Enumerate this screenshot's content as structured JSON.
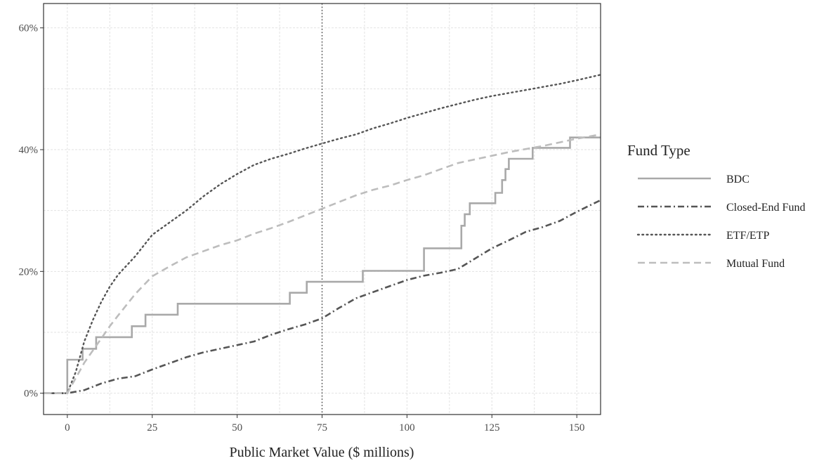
{
  "chart_data": {
    "type": "line",
    "step": true,
    "title": "",
    "xlabel": "Public Market Value ($ millions)",
    "ylabel": "",
    "xlim": [
      -7,
      157
    ],
    "ylim": [
      -3.5,
      64
    ],
    "x_ticks": [
      0,
      25,
      50,
      75,
      100,
      125,
      150
    ],
    "x_tick_labels": [
      "0",
      "25",
      "50",
      "75",
      "100",
      "125",
      "150"
    ],
    "y_ticks": [
      0,
      20,
      40,
      60
    ],
    "y_tick_labels": [
      "0%",
      "20%",
      "40%",
      "60%"
    ],
    "grid": true,
    "reference_line": {
      "axis": "x",
      "value": 75,
      "style": "dotted"
    },
    "legend": {
      "title": "Fund Type",
      "placement": "right",
      "entries": [
        "BDC",
        "Closed-End Fund",
        "ETF/ETP",
        "Mutual Fund"
      ]
    },
    "series": [
      {
        "name": "BDC",
        "color": "#a9a9a9",
        "dash": "solid",
        "points": [
          [
            -7,
            0
          ],
          [
            0,
            0
          ],
          [
            0,
            5.5
          ],
          [
            4.5,
            5.5
          ],
          [
            4.5,
            7.3
          ],
          [
            8.5,
            7.3
          ],
          [
            8.5,
            9.2
          ],
          [
            19,
            9.2
          ],
          [
            19,
            11
          ],
          [
            23,
            11
          ],
          [
            23,
            12.9
          ],
          [
            32.5,
            12.9
          ],
          [
            32.5,
            14.7
          ],
          [
            65.5,
            14.7
          ],
          [
            65.5,
            16.5
          ],
          [
            70.5,
            16.5
          ],
          [
            70.5,
            18.3
          ],
          [
            87,
            18.3
          ],
          [
            87,
            20.1
          ],
          [
            105,
            20.1
          ],
          [
            105,
            23.8
          ],
          [
            116,
            23.8
          ],
          [
            116,
            27.5
          ],
          [
            117,
            27.5
          ],
          [
            117,
            29.4
          ],
          [
            118.5,
            29.4
          ],
          [
            118.5,
            31.2
          ],
          [
            126,
            31.2
          ],
          [
            126,
            32.9
          ],
          [
            128,
            32.9
          ],
          [
            128,
            35
          ],
          [
            129,
            35
          ],
          [
            129,
            36.8
          ],
          [
            130,
            36.8
          ],
          [
            130,
            38.5
          ],
          [
            137,
            38.5
          ],
          [
            137,
            40.3
          ],
          [
            148,
            40.3
          ],
          [
            148,
            42
          ],
          [
            157,
            42
          ]
        ]
      },
      {
        "name": "Closed-End Fund",
        "color": "#555555",
        "dash": "dotdash",
        "points": [
          [
            -7,
            0
          ],
          [
            0,
            0
          ],
          [
            5,
            0.5
          ],
          [
            10,
            1.6
          ],
          [
            15,
            2.4
          ],
          [
            20,
            2.8
          ],
          [
            25,
            3.9
          ],
          [
            30,
            4.9
          ],
          [
            35,
            5.9
          ],
          [
            40,
            6.7
          ],
          [
            45,
            7.3
          ],
          [
            50,
            7.9
          ],
          [
            55,
            8.5
          ],
          [
            60,
            9.6
          ],
          [
            65,
            10.5
          ],
          [
            70,
            11.3
          ],
          [
            75,
            12.3
          ],
          [
            80,
            14
          ],
          [
            85,
            15.6
          ],
          [
            90,
            16.6
          ],
          [
            95,
            17.6
          ],
          [
            100,
            18.6
          ],
          [
            105,
            19.3
          ],
          [
            110,
            19.8
          ],
          [
            115,
            20.4
          ],
          [
            120,
            22.1
          ],
          [
            125,
            23.8
          ],
          [
            130,
            25.1
          ],
          [
            135,
            26.5
          ],
          [
            140,
            27.3
          ],
          [
            145,
            28.3
          ],
          [
            150,
            29.8
          ],
          [
            157,
            31.7
          ]
        ]
      },
      {
        "name": "ETF/ETP",
        "color": "#555555",
        "dash": "dotted",
        "points": [
          [
            -7,
            0
          ],
          [
            0,
            0
          ],
          [
            2.5,
            3.5
          ],
          [
            5,
            8.5
          ],
          [
            7.5,
            12
          ],
          [
            10,
            15
          ],
          [
            12.5,
            17.5
          ],
          [
            15,
            19.5
          ],
          [
            20,
            22.5
          ],
          [
            25,
            26
          ],
          [
            30,
            28
          ],
          [
            35,
            30
          ],
          [
            40,
            32.3
          ],
          [
            45,
            34.3
          ],
          [
            50,
            36
          ],
          [
            55,
            37.5
          ],
          [
            60,
            38.5
          ],
          [
            65,
            39.3
          ],
          [
            70,
            40.2
          ],
          [
            75,
            41
          ],
          [
            80,
            41.8
          ],
          [
            85,
            42.5
          ],
          [
            90,
            43.5
          ],
          [
            95,
            44.3
          ],
          [
            100,
            45.2
          ],
          [
            105,
            46
          ],
          [
            110,
            46.8
          ],
          [
            115,
            47.5
          ],
          [
            120,
            48.2
          ],
          [
            125,
            48.8
          ],
          [
            130,
            49.3
          ],
          [
            135,
            49.8
          ],
          [
            140,
            50.3
          ],
          [
            145,
            50.8
          ],
          [
            150,
            51.4
          ],
          [
            157,
            52.3
          ]
        ]
      },
      {
        "name": "Mutual Fund",
        "color": "#bdbdbd",
        "dash": "dashed",
        "points": [
          [
            -7,
            0
          ],
          [
            0,
            0
          ],
          [
            2.5,
            2.5
          ],
          [
            5,
            5
          ],
          [
            7.5,
            7
          ],
          [
            10,
            9
          ],
          [
            12.5,
            11
          ],
          [
            15,
            12.8
          ],
          [
            20,
            16.3
          ],
          [
            25,
            19.2
          ],
          [
            30,
            20.8
          ],
          [
            35,
            22.3
          ],
          [
            40,
            23.3
          ],
          [
            45,
            24.3
          ],
          [
            50,
            25.1
          ],
          [
            55,
            26.2
          ],
          [
            60,
            27.1
          ],
          [
            65,
            28.1
          ],
          [
            70,
            29.2
          ],
          [
            75,
            30.3
          ],
          [
            80,
            31.4
          ],
          [
            85,
            32.5
          ],
          [
            90,
            33.4
          ],
          [
            95,
            34.1
          ],
          [
            100,
            35
          ],
          [
            105,
            35.8
          ],
          [
            110,
            36.8
          ],
          [
            115,
            37.8
          ],
          [
            120,
            38.4
          ],
          [
            125,
            39
          ],
          [
            130,
            39.6
          ],
          [
            135,
            40.1
          ],
          [
            140,
            40.6
          ],
          [
            145,
            41.2
          ],
          [
            150,
            41.8
          ],
          [
            157,
            42.5
          ]
        ]
      }
    ]
  }
}
